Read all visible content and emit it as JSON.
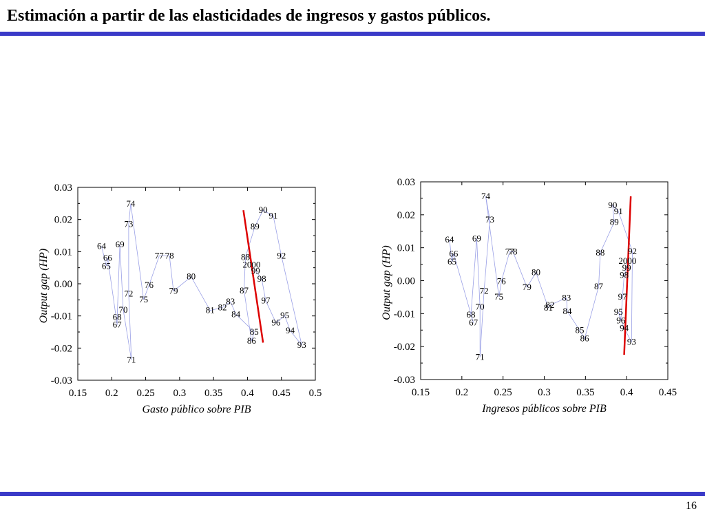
{
  "slide": {
    "title": "Estimación a partir de las elasticidades de ingresos y gastos públicos.",
    "page_number": "16"
  },
  "colors": {
    "accent_bar": "#3a3ac8",
    "connector_line": "#9aa0e6",
    "fit_line": "#dd0000"
  },
  "chart_data": [
    {
      "type": "scatter",
      "xlabel": "Gasto público sobre PIB",
      "ylabel": "Output gap (HP)",
      "xlim": [
        0.15,
        0.5
      ],
      "ylim": [
        -0.03,
        0.03
      ],
      "xticks": [
        "0.15",
        "0.2",
        "0.25",
        "0.3",
        "0.35",
        "0.4",
        "0.45",
        "0.5"
      ],
      "yticks": [
        "0.03",
        "0.02",
        "0.01",
        "0.00",
        "-0.01",
        "-0.02",
        "-0.03"
      ],
      "points_connected": true,
      "points": [
        {
          "label": "64",
          "x": 0.185,
          "y": 0.0117
        },
        {
          "label": "65",
          "x": 0.192,
          "y": 0.0055
        },
        {
          "label": "66",
          "x": 0.194,
          "y": 0.008
        },
        {
          "label": "67",
          "x": 0.208,
          "y": -0.0128
        },
        {
          "label": "68",
          "x": 0.208,
          "y": -0.0104
        },
        {
          "label": "69",
          "x": 0.212,
          "y": 0.0122
        },
        {
          "label": "70",
          "x": 0.217,
          "y": -0.0081
        },
        {
          "label": "71",
          "x": 0.229,
          "y": -0.0237
        },
        {
          "label": "72",
          "x": 0.225,
          "y": -0.0031
        },
        {
          "label": "73",
          "x": 0.225,
          "y": 0.0185
        },
        {
          "label": "74",
          "x": 0.228,
          "y": 0.0249
        },
        {
          "label": "75",
          "x": 0.247,
          "y": -0.0049
        },
        {
          "label": "76",
          "x": 0.255,
          "y": -0.0004
        },
        {
          "label": "77",
          "x": 0.27,
          "y": 0.0087
        },
        {
          "label": "78",
          "x": 0.285,
          "y": 0.0087
        },
        {
          "label": "79",
          "x": 0.291,
          "y": -0.0023
        },
        {
          "label": "80",
          "x": 0.317,
          "y": 0.0022
        },
        {
          "label": "81",
          "x": 0.345,
          "y": -0.0083
        },
        {
          "label": "82",
          "x": 0.363,
          "y": -0.0074
        },
        {
          "label": "83",
          "x": 0.375,
          "y": -0.0056
        },
        {
          "label": "84",
          "x": 0.383,
          "y": -0.0095
        },
        {
          "label": "85",
          "x": 0.41,
          "y": -0.015
        },
        {
          "label": "86",
          "x": 0.406,
          "y": -0.0178
        },
        {
          "label": "87",
          "x": 0.395,
          "y": -0.0021
        },
        {
          "label": "88",
          "x": 0.397,
          "y": 0.0083
        },
        {
          "label": "89",
          "x": 0.411,
          "y": 0.0178
        },
        {
          "label": "90",
          "x": 0.423,
          "y": 0.0229
        },
        {
          "label": "91",
          "x": 0.438,
          "y": 0.0211
        },
        {
          "label": "92",
          "x": 0.45,
          "y": 0.0087
        },
        {
          "label": "93",
          "x": 0.48,
          "y": -0.0191
        },
        {
          "label": "94",
          "x": 0.463,
          "y": -0.0146
        },
        {
          "label": "95",
          "x": 0.455,
          "y": -0.0099
        },
        {
          "label": "96",
          "x": 0.442,
          "y": -0.0121
        },
        {
          "label": "97",
          "x": 0.427,
          "y": -0.0053
        },
        {
          "label": "98",
          "x": 0.421,
          "y": 0.0015
        },
        {
          "label": "99",
          "x": 0.412,
          "y": 0.004
        },
        {
          "label": "2000",
          "x": 0.406,
          "y": 0.0059
        }
      ],
      "fit_line": {
        "x": [
          0.394,
          0.423
        ],
        "y": [
          0.0229,
          -0.0183
        ]
      }
    },
    {
      "type": "scatter",
      "xlabel": "Ingresos públicos sobre PIB",
      "ylabel": "Output gap (HP)",
      "xlim": [
        0.15,
        0.45
      ],
      "ylim": [
        -0.03,
        0.03
      ],
      "xticks": [
        "0.15",
        "0.2",
        "0.25",
        "0.3",
        "0.35",
        "0.4",
        "0.45"
      ],
      "yticks": [
        "0.03",
        "0.02",
        "0.01",
        "0.00",
        "-0.01",
        "-0.02",
        "-0.03"
      ],
      "points_connected": true,
      "points": [
        {
          "label": "64",
          "x": 0.185,
          "y": 0.0124
        },
        {
          "label": "65",
          "x": 0.188,
          "y": 0.0057
        },
        {
          "label": "66",
          "x": 0.19,
          "y": 0.0082
        },
        {
          "label": "67",
          "x": 0.214,
          "y": -0.0128
        },
        {
          "label": "68",
          "x": 0.211,
          "y": -0.0104
        },
        {
          "label": "69",
          "x": 0.218,
          "y": 0.0128
        },
        {
          "label": "70",
          "x": 0.222,
          "y": -0.0079
        },
        {
          "label": "71",
          "x": 0.222,
          "y": -0.0232
        },
        {
          "label": "72",
          "x": 0.227,
          "y": -0.0031
        },
        {
          "label": "73",
          "x": 0.234,
          "y": 0.0185
        },
        {
          "label": "74",
          "x": 0.229,
          "y": 0.0256
        },
        {
          "label": "75",
          "x": 0.245,
          "y": -0.0049
        },
        {
          "label": "76",
          "x": 0.248,
          "y": -0.0002
        },
        {
          "label": "77",
          "x": 0.258,
          "y": 0.0088
        },
        {
          "label": "78",
          "x": 0.262,
          "y": 0.0088
        },
        {
          "label": "79",
          "x": 0.279,
          "y": -0.002
        },
        {
          "label": "80",
          "x": 0.29,
          "y": 0.0025
        },
        {
          "label": "81",
          "x": 0.305,
          "y": -0.0083
        },
        {
          "label": "82",
          "x": 0.307,
          "y": -0.0074
        },
        {
          "label": "83",
          "x": 0.327,
          "y": -0.0052
        },
        {
          "label": "84",
          "x": 0.328,
          "y": -0.0093
        },
        {
          "label": "85",
          "x": 0.343,
          "y": -0.0151
        },
        {
          "label": "86",
          "x": 0.349,
          "y": -0.0176
        },
        {
          "label": "87",
          "x": 0.366,
          "y": -0.0018
        },
        {
          "label": "88",
          "x": 0.368,
          "y": 0.0085
        },
        {
          "label": "89",
          "x": 0.385,
          "y": 0.0178
        },
        {
          "label": "90",
          "x": 0.383,
          "y": 0.0229
        },
        {
          "label": "91",
          "x": 0.39,
          "y": 0.021
        },
        {
          "label": "92",
          "x": 0.407,
          "y": 0.0089
        },
        {
          "label": "93",
          "x": 0.406,
          "y": -0.0186
        },
        {
          "label": "94",
          "x": 0.397,
          "y": -0.0144
        },
        {
          "label": "95",
          "x": 0.39,
          "y": -0.0095
        },
        {
          "label": "96",
          "x": 0.393,
          "y": -0.0121
        },
        {
          "label": "97",
          "x": 0.395,
          "y": -0.0049
        },
        {
          "label": "98",
          "x": 0.397,
          "y": 0.0017
        },
        {
          "label": "99",
          "x": 0.4,
          "y": 0.0039
        },
        {
          "label": "2000",
          "x": 0.401,
          "y": 0.006
        }
      ],
      "fit_line": {
        "x": [
          0.397,
          0.405
        ],
        "y": [
          -0.0225,
          0.0256
        ]
      }
    }
  ]
}
